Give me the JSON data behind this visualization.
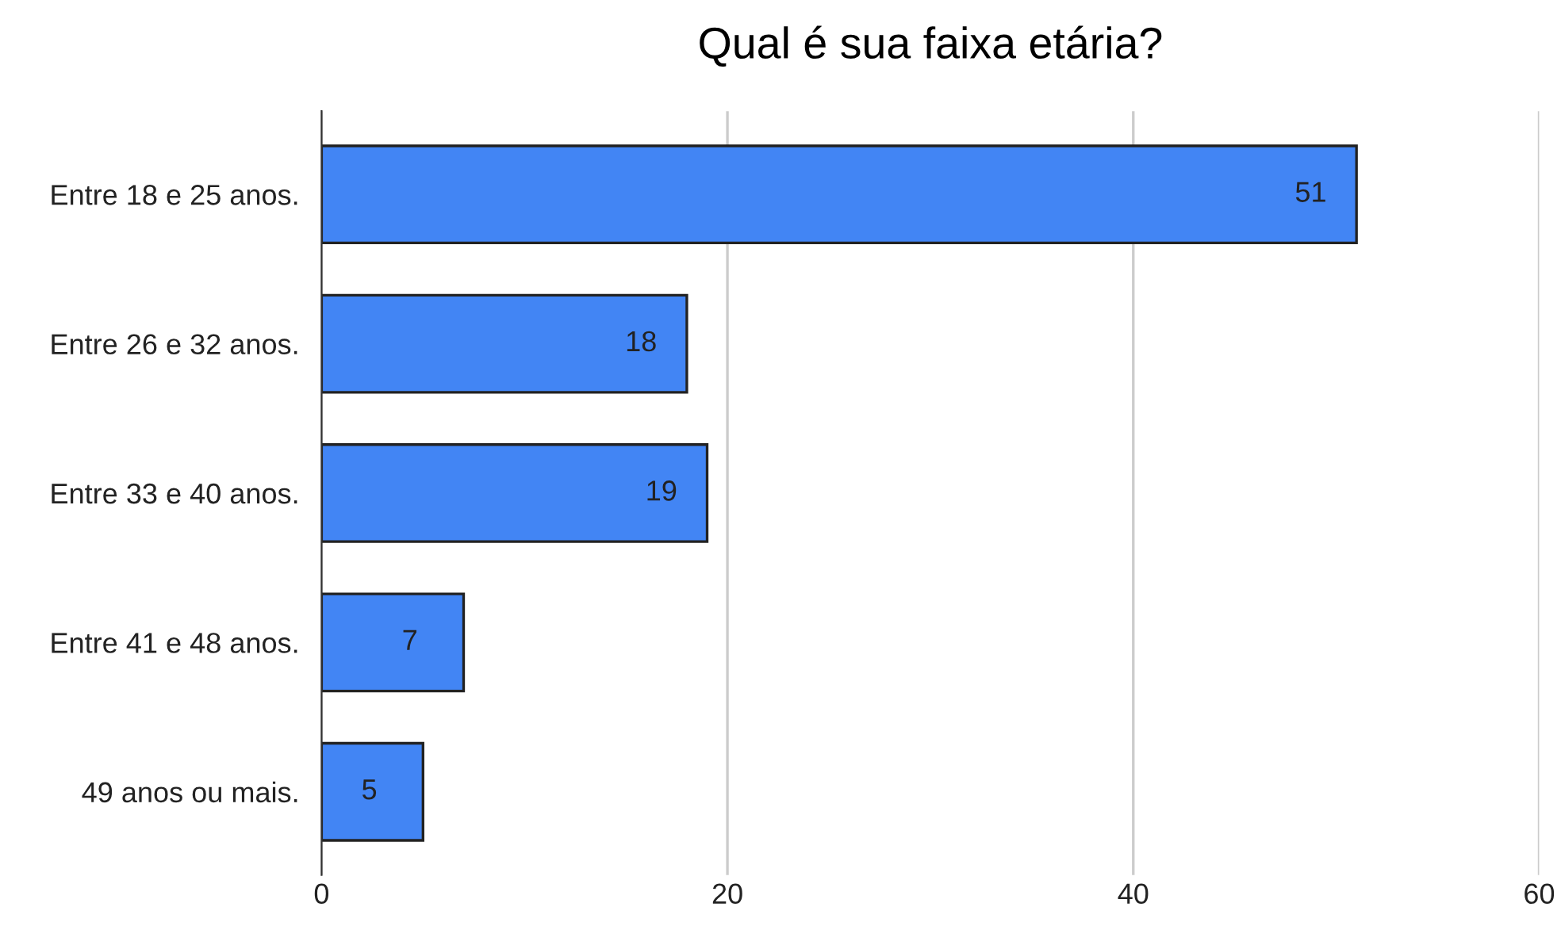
{
  "chart_data": {
    "type": "bar",
    "orientation": "horizontal",
    "title": "Qual é sua faixa etária?",
    "categories": [
      "Entre 18 e 25 anos.",
      "Entre 26 e 32 anos.",
      "Entre 33 e 40 anos.",
      "Entre 41 e 48 anos.",
      "49 anos ou mais."
    ],
    "values": [
      51,
      18,
      19,
      7,
      5
    ],
    "color": "#4285f4",
    "xlim": [
      0,
      60
    ],
    "xticks": [
      0,
      20,
      40,
      60
    ],
    "grid": "x",
    "data_labels": true,
    "legend": false
  }
}
